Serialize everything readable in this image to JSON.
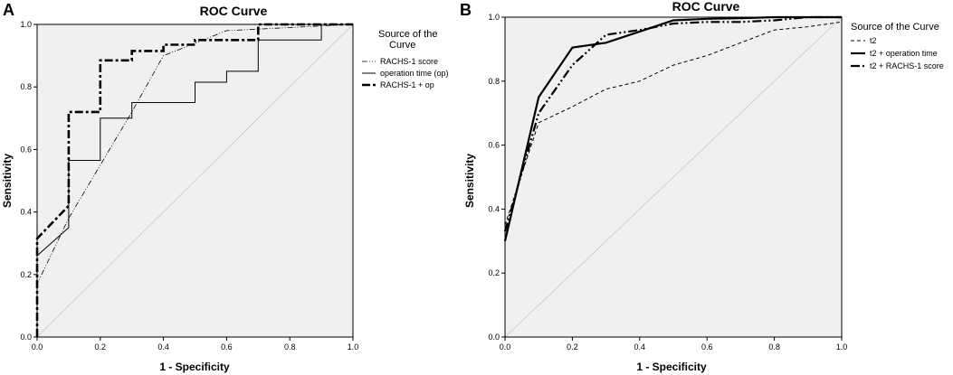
{
  "chart_data": [
    {
      "panel": "A",
      "type": "line",
      "title": "ROC Curve",
      "xlabel": "1 - Specificity",
      "ylabel": "Sensitivity",
      "xlim": [
        0.0,
        1.0
      ],
      "ylim": [
        0.0,
        1.0
      ],
      "xticks": [
        "0.0",
        "0.2",
        "0.4",
        "0.6",
        "0.8",
        "1.0"
      ],
      "yticks": [
        "0.0",
        "0.2",
        "0.4",
        "0.6",
        "0.8",
        "1.0"
      ],
      "legend_title": "Source of the Curve",
      "grid": false,
      "series": [
        {
          "name": "RACHS-1 score",
          "style": "dash-dot-dot",
          "points": [
            [
              0,
              0
            ],
            [
              0,
              0.17
            ],
            [
              0.1,
              0.38
            ],
            [
              0.2,
              0.55
            ],
            [
              0.3,
              0.72
            ],
            [
              0.4,
              0.9
            ],
            [
              0.5,
              0.94
            ],
            [
              0.6,
              0.98
            ],
            [
              0.7,
              0.985
            ],
            [
              0.8,
              0.99
            ],
            [
              0.9,
              0.995
            ],
            [
              1.0,
              1.0
            ]
          ]
        },
        {
          "name": "operation time (op)",
          "style": "solid",
          "points": [
            [
              0,
              0
            ],
            [
              0,
              0.26
            ],
            [
              0.1,
              0.35
            ],
            [
              0.1,
              0.565
            ],
            [
              0.2,
              0.565
            ],
            [
              0.2,
              0.7
            ],
            [
              0.3,
              0.7
            ],
            [
              0.3,
              0.75
            ],
            [
              0.5,
              0.75
            ],
            [
              0.5,
              0.815
            ],
            [
              0.6,
              0.815
            ],
            [
              0.6,
              0.85
            ],
            [
              0.7,
              0.85
            ],
            [
              0.7,
              0.95
            ],
            [
              0.9,
              0.95
            ],
            [
              0.9,
              1.0
            ],
            [
              1.0,
              1.0
            ]
          ]
        },
        {
          "name": "RACHS-1 + op",
          "style": "thick-dash-dot",
          "points": [
            [
              0,
              0
            ],
            [
              0,
              0.315
            ],
            [
              0.1,
              0.42
            ],
            [
              0.1,
              0.72
            ],
            [
              0.2,
              0.72
            ],
            [
              0.2,
              0.885
            ],
            [
              0.3,
              0.885
            ],
            [
              0.3,
              0.915
            ],
            [
              0.4,
              0.915
            ],
            [
              0.4,
              0.935
            ],
            [
              0.5,
              0.935
            ],
            [
              0.5,
              0.95
            ],
            [
              0.7,
              0.95
            ],
            [
              0.7,
              1.0
            ],
            [
              1.0,
              1.0
            ]
          ]
        }
      ]
    },
    {
      "panel": "B",
      "type": "line",
      "title": "ROC Curve",
      "xlabel": "1 - Specificity",
      "ylabel": "Sensitivity",
      "xlim": [
        0.0,
        1.0
      ],
      "ylim": [
        0.0,
        1.0
      ],
      "xticks": [
        "0.0",
        "0.2",
        "0.4",
        "0.6",
        "0.8",
        "1.0"
      ],
      "yticks": [
        "0.0",
        "0.2",
        "0.4",
        "0.6",
        "0.8",
        "1.0"
      ],
      "legend_title": "Source of the Curve",
      "grid": false,
      "series": [
        {
          "name": "t2",
          "style": "dashed",
          "points": [
            [
              0,
              0.35
            ],
            [
              0.1,
              0.67
            ],
            [
              0.2,
              0.72
            ],
            [
              0.3,
              0.775
            ],
            [
              0.4,
              0.8
            ],
            [
              0.5,
              0.85
            ],
            [
              0.6,
              0.88
            ],
            [
              0.7,
              0.92
            ],
            [
              0.8,
              0.96
            ],
            [
              0.9,
              0.97
            ],
            [
              1.0,
              0.985
            ]
          ]
        },
        {
          "name": "t2 + operation time",
          "style": "thick-solid",
          "points": [
            [
              0,
              0.3
            ],
            [
              0.1,
              0.75
            ],
            [
              0.2,
              0.905
            ],
            [
              0.3,
              0.92
            ],
            [
              0.4,
              0.955
            ],
            [
              0.5,
              0.99
            ],
            [
              0.6,
              0.995
            ],
            [
              0.7,
              0.997
            ],
            [
              0.8,
              1.0
            ],
            [
              1.0,
              1.0
            ]
          ]
        },
        {
          "name": "t2 + RACHS-1 score",
          "style": "thick-dash-dot-dot",
          "points": [
            [
              0,
              0.33
            ],
            [
              0.1,
              0.7
            ],
            [
              0.2,
              0.85
            ],
            [
              0.3,
              0.945
            ],
            [
              0.4,
              0.96
            ],
            [
              0.5,
              0.98
            ],
            [
              0.6,
              0.985
            ],
            [
              0.7,
              0.985
            ],
            [
              0.8,
              0.99
            ],
            [
              0.9,
              1.0
            ],
            [
              1.0,
              1.0
            ]
          ]
        }
      ]
    }
  ]
}
